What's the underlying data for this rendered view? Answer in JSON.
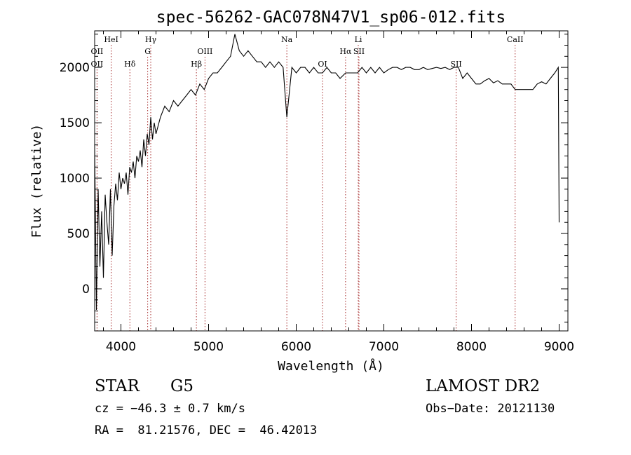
{
  "chart_data": {
    "type": "line",
    "title": "spec-56262-GAC078N47V1_sp06-012.fits",
    "xlabel": "Wavelength (Å)",
    "ylabel": "Flux (relative)",
    "xlim": [
      3700,
      9100
    ],
    "ylim": [
      -380,
      2330
    ],
    "xticks": [
      4000,
      5000,
      6000,
      7000,
      8000,
      9000
    ],
    "yticks": [
      0,
      500,
      1000,
      1500,
      2000
    ],
    "grid": false,
    "line_color": "#000000",
    "marker_color": "#a52a2a",
    "lines": [
      {
        "label": "OII",
        "wavelength": 3727,
        "row": 2
      },
      {
        "label": "HeI",
        "wavelength": 3889,
        "row": 0
      },
      {
        "label": "Hδ",
        "wavelength": 4102,
        "row": 2
      },
      {
        "label": "Hγ",
        "wavelength": 4340,
        "row": 0
      },
      {
        "label": "G",
        "wavelength": 4305,
        "row": 1
      },
      {
        "label": "Hβ",
        "wavelength": 4861,
        "row": 2
      },
      {
        "label": "OIII",
        "wavelength": 4959,
        "row": 1
      },
      {
        "label": "Na",
        "wavelength": 5893,
        "row": 0
      },
      {
        "label": "OI",
        "wavelength": 6300,
        "row": 2
      },
      {
        "label": "Hα",
        "wavelength": 6563,
        "row": 1
      },
      {
        "label": "Li",
        "wavelength": 6708,
        "row": 0
      },
      {
        "label": "SII",
        "wavelength": 6716,
        "row": 1
      },
      {
        "label": "SII",
        "wavelength": 7825,
        "row": 2
      },
      {
        "label": "CaII",
        "wavelength": 8498,
        "row": 0
      }
    ],
    "extra_labels": [
      {
        "label": "OII",
        "wavelength": 3727,
        "row": 1
      }
    ],
    "spectrum": {
      "x": [
        3700,
        3720,
        3740,
        3760,
        3780,
        3800,
        3820,
        3840,
        3860,
        3880,
        3900,
        3920,
        3940,
        3960,
        3980,
        4000,
        4020,
        4040,
        4060,
        4080,
        4100,
        4120,
        4140,
        4160,
        4180,
        4200,
        4220,
        4240,
        4260,
        4280,
        4300,
        4320,
        4340,
        4360,
        4380,
        4400,
        4450,
        4500,
        4550,
        4600,
        4650,
        4700,
        4750,
        4800,
        4850,
        4900,
        4950,
        5000,
        5050,
        5100,
        5150,
        5200,
        5250,
        5300,
        5350,
        5400,
        5450,
        5500,
        5550,
        5600,
        5650,
        5700,
        5750,
        5800,
        5850,
        5893,
        5950,
        6000,
        6050,
        6100,
        6150,
        6200,
        6250,
        6300,
        6350,
        6400,
        6450,
        6500,
        6563,
        6600,
        6650,
        6700,
        6750,
        6800,
        6850,
        6900,
        6950,
        7000,
        7050,
        7100,
        7150,
        7200,
        7250,
        7300,
        7350,
        7400,
        7450,
        7500,
        7550,
        7600,
        7650,
        7700,
        7750,
        7800,
        7850,
        7900,
        7950,
        8000,
        8050,
        8100,
        8150,
        8200,
        8250,
        8300,
        8350,
        8400,
        8450,
        8498,
        8550,
        8600,
        8650,
        8700,
        8750,
        8800,
        8850,
        8900,
        8950,
        8990,
        9000
      ],
      "y": [
        1300,
        -190,
        900,
        200,
        700,
        100,
        850,
        600,
        400,
        900,
        300,
        750,
        950,
        800,
        1050,
        900,
        1000,
        950,
        1050,
        850,
        1100,
        1050,
        1150,
        1000,
        1200,
        1150,
        1250,
        1100,
        1350,
        1200,
        1400,
        1300,
        1550,
        1350,
        1500,
        1400,
        1550,
        1650,
        1600,
        1700,
        1650,
        1700,
        1750,
        1800,
        1750,
        1850,
        1800,
        1900,
        1950,
        1950,
        2000,
        2050,
        2100,
        2300,
        2150,
        2100,
        2150,
        2100,
        2050,
        2050,
        2000,
        2050,
        2000,
        2050,
        2000,
        1550,
        2000,
        1950,
        2000,
        2000,
        1950,
        2000,
        1950,
        1950,
        2000,
        1950,
        1950,
        1900,
        1950,
        1950,
        1950,
        1950,
        2000,
        1950,
        2000,
        1950,
        2000,
        1950,
        1980,
        2000,
        2000,
        1980,
        2000,
        2000,
        1980,
        1980,
        2000,
        1980,
        1990,
        2000,
        1990,
        2000,
        1980,
        2000,
        2000,
        1900,
        1950,
        1900,
        1850,
        1850,
        1880,
        1900,
        1860,
        1880,
        1850,
        1850,
        1850,
        1800,
        1800,
        1800,
        1800,
        1800,
        1850,
        1870,
        1850,
        1900,
        1950,
        2000,
        600
      ]
    }
  },
  "info": {
    "object_class": "STAR",
    "subclass": "G5",
    "survey": "LAMOST DR2",
    "redshift": "cz = −46.3 ± 0.7 km/s",
    "obs_date": "Obs−Date: 20121130",
    "coords": "RA =  81.21576, DEC =  46.42013"
  }
}
